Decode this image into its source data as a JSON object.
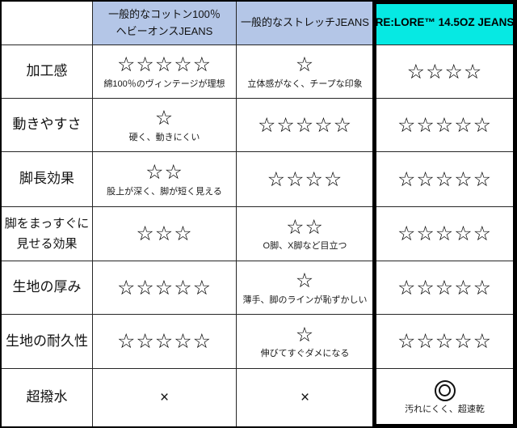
{
  "chart_data": {
    "type": "table",
    "title": "",
    "rating_max": 5,
    "columns": [
      {
        "id": "feature",
        "label_lines": [],
        "highlight": false
      },
      {
        "id": "cotton100-heavy-oz",
        "label_lines": [
          "一般的なコットン100％",
          "ヘビーオンスJEANS"
        ],
        "highlight": false
      },
      {
        "id": "stretch",
        "label_lines": [
          "一般的なストレッチJEANS"
        ],
        "highlight": false
      },
      {
        "id": "relore",
        "label_lines": [
          "RE:LORE™ 14.5OZ JEANS"
        ],
        "highlight": true
      }
    ],
    "rows": [
      {
        "label_lines": [
          "加工感"
        ],
        "cells": [
          {
            "stars": 5,
            "note": "綿100％のヴィンテージが理想"
          },
          {
            "stars": 1,
            "note": "立体感がなく、チープな印象"
          },
          {
            "stars": 4
          }
        ]
      },
      {
        "label_lines": [
          "動きやすさ"
        ],
        "cells": [
          {
            "stars": 1,
            "note": "硬く、動きにくい"
          },
          {
            "stars": 5
          },
          {
            "stars": 5
          }
        ]
      },
      {
        "label_lines": [
          "脚長効果"
        ],
        "cells": [
          {
            "stars": 2,
            "note": "股上が深く、脚が短く見える"
          },
          {
            "stars": 4
          },
          {
            "stars": 5
          }
        ]
      },
      {
        "label_lines": [
          "脚をまっすぐに",
          "見せる効果"
        ],
        "cells": [
          {
            "stars": 3
          },
          {
            "stars": 2,
            "note": "O脚、X脚など目立つ"
          },
          {
            "stars": 5
          }
        ]
      },
      {
        "label_lines": [
          "生地の厚み"
        ],
        "cells": [
          {
            "stars": 5
          },
          {
            "stars": 1,
            "note": "薄手、脚のラインが恥ずかしい"
          },
          {
            "stars": 5
          }
        ]
      },
      {
        "label_lines": [
          "生地の耐久性"
        ],
        "cells": [
          {
            "stars": 5
          },
          {
            "stars": 1,
            "note": "伸びてすぐダメになる"
          },
          {
            "stars": 5
          }
        ]
      },
      {
        "label_lines": [
          "超撥水"
        ],
        "cells": [
          {
            "symbol": "cross"
          },
          {
            "symbol": "cross"
          },
          {
            "symbol": "double_circle",
            "note": "汚れにくく、超速乾"
          }
        ]
      }
    ]
  },
  "symbols": {
    "star": "☆",
    "cross": "×",
    "double_circle": "◎"
  },
  "colors": {
    "header_bg": "#b4c6e7",
    "highlight_bg": "#06e9e3",
    "grid_line": "#262626",
    "highlight_frame": "#000000"
  }
}
